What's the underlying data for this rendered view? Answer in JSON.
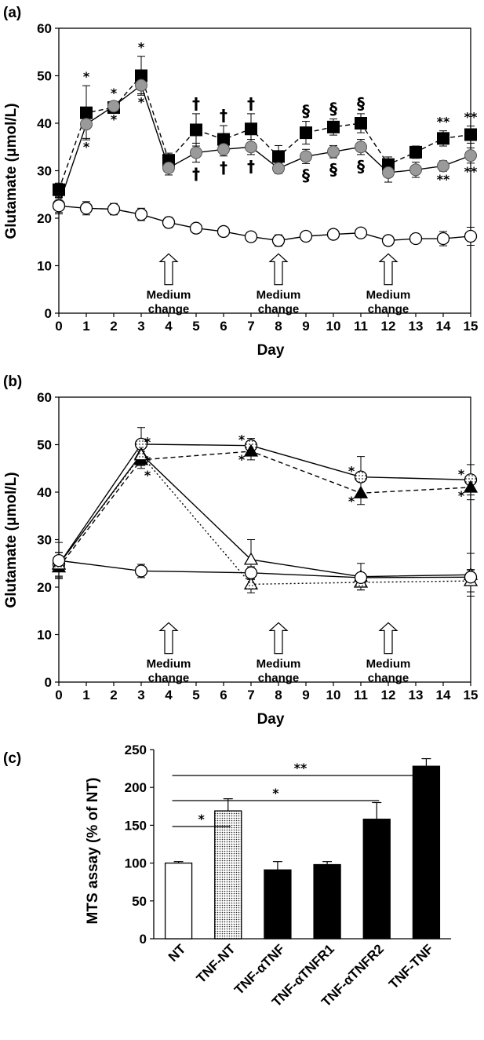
{
  "chart_data": [
    {
      "panel_label": "(a)",
      "type": "line",
      "xlabel": "Day",
      "ylabel": "Glutamate (μmol/L)",
      "xlim": [
        0,
        15
      ],
      "ylim": [
        0,
        60
      ],
      "xticks": [
        "0",
        "1",
        "2",
        "3",
        "4",
        "5",
        "6",
        "7",
        "8",
        "9",
        "10",
        "11",
        "12",
        "13",
        "14",
        "15"
      ],
      "yticks": [
        "0",
        "10",
        "20",
        "30",
        "40",
        "50",
        "60"
      ],
      "grid": false,
      "series": [
        {
          "marker": "filled-square",
          "line": "dashed",
          "x": [
            0,
            1,
            2,
            3,
            4,
            5,
            6,
            7,
            8,
            9,
            10,
            11,
            12,
            13,
            14,
            15
          ],
          "y": [
            26,
            42.2,
            43.3,
            50,
            32.2,
            38.6,
            36.6,
            38.8,
            33,
            38,
            39.2,
            40,
            31.3,
            33.9,
            36.8,
            37.6
          ],
          "err": [
            1.4,
            5.7,
            1.2,
            4.1,
            1.5,
            3.4,
            2.9,
            3.2,
            2.3,
            2.4,
            1.7,
            2,
            1.6,
            1.3,
            1.6,
            1.8
          ]
        },
        {
          "marker": "gray-circle",
          "line": "solid",
          "x": [
            0,
            1,
            2,
            3,
            4,
            5,
            6,
            7,
            8,
            9,
            10,
            11,
            12,
            13,
            14,
            15
          ],
          "y": [
            22.8,
            39.8,
            43.6,
            48,
            30.6,
            33.8,
            34.5,
            35,
            30.5,
            33,
            34,
            35,
            29.6,
            30.2,
            31,
            33.2
          ],
          "err": [
            1.6,
            3,
            1,
            1.8,
            1.5,
            2,
            1.4,
            1.6,
            1.1,
            1.5,
            1.3,
            1.6,
            2,
            1.6,
            1.1,
            1.6
          ]
        },
        {
          "marker": "open-circle",
          "line": "solid",
          "x": [
            0,
            1,
            2,
            3,
            4,
            5,
            6,
            7,
            8,
            9,
            10,
            11,
            12,
            13,
            14,
            15
          ],
          "y": [
            22.6,
            22.1,
            21.9,
            20.8,
            19.1,
            17.9,
            17.2,
            16.1,
            15.3,
            16.2,
            16.6,
            16.9,
            15.3,
            15.7,
            15.7,
            16.2
          ],
          "err": [
            1.7,
            1.4,
            1.2,
            1.3,
            1.1,
            0.6,
            0.6,
            0.6,
            1.2,
            0.9,
            1,
            0.9,
            1,
            0.9,
            1.5,
            1.9
          ]
        }
      ],
      "annotations": [
        {
          "text": "*",
          "x": 1,
          "pos": "above"
        },
        {
          "text": "*",
          "x": 1,
          "pos": "below"
        },
        {
          "text": "*",
          "x": 2,
          "pos": "above"
        },
        {
          "text": "*",
          "x": 2,
          "pos": "below"
        },
        {
          "text": "*",
          "x": 3,
          "pos": "above"
        },
        {
          "text": "*",
          "x": 3,
          "pos": "below"
        },
        {
          "text": "†",
          "x": 5,
          "pos": "above"
        },
        {
          "text": "†",
          "x": 5,
          "pos": "below"
        },
        {
          "text": "†",
          "x": 6,
          "pos": "above"
        },
        {
          "text": "†",
          "x": 6,
          "pos": "below"
        },
        {
          "text": "†",
          "x": 7,
          "pos": "above"
        },
        {
          "text": "†",
          "x": 7,
          "pos": "below"
        },
        {
          "text": "§",
          "x": 9,
          "pos": "above"
        },
        {
          "text": "§",
          "x": 9,
          "pos": "below"
        },
        {
          "text": "§",
          "x": 10,
          "pos": "above"
        },
        {
          "text": "§",
          "x": 10,
          "pos": "below"
        },
        {
          "text": "§",
          "x": 11,
          "pos": "above"
        },
        {
          "text": "§",
          "x": 11,
          "pos": "below"
        },
        {
          "text": "**",
          "x": 14,
          "pos": "above"
        },
        {
          "text": "**",
          "x": 14,
          "pos": "below"
        },
        {
          "text": "**",
          "x": 15,
          "pos": "above"
        },
        {
          "text": "**",
          "x": 15,
          "pos": "below"
        }
      ],
      "medium_change": {
        "label_line1": "Medium",
        "label_line2": "change",
        "days": [
          4,
          8,
          12
        ]
      }
    },
    {
      "panel_label": "(b)",
      "type": "line",
      "xlabel": "Day",
      "ylabel": "Glutamate (μmol/L)",
      "xlim": [
        0,
        15
      ],
      "ylim": [
        0,
        60
      ],
      "xticks": [
        "0",
        "1",
        "2",
        "3",
        "4",
        "5",
        "6",
        "7",
        "8",
        "9",
        "10",
        "11",
        "12",
        "13",
        "14",
        "15"
      ],
      "yticks": [
        "0",
        "10",
        "20",
        "30",
        "40",
        "50",
        "60"
      ],
      "grid": false,
      "series": [
        {
          "marker": "dotted-circle",
          "line": "solid",
          "x": [
            0,
            3,
            7,
            11,
            15
          ],
          "y": [
            24.8,
            50.1,
            49.8,
            43.2,
            42.6
          ],
          "err": [
            2.5,
            3.5,
            1.5,
            4.3,
            3.2
          ]
        },
        {
          "marker": "filled-triangle",
          "line": "dashed",
          "x": [
            0,
            3,
            7,
            11,
            15
          ],
          "y": [
            24.2,
            46.8,
            48.6,
            39.8,
            41
          ],
          "err": [
            2.2,
            1.8,
            1.8,
            2.4,
            2.6
          ]
        },
        {
          "marker": "open-triangle",
          "line": "solid",
          "x": [
            0,
            3,
            7,
            11,
            15
          ],
          "y": [
            24.8,
            48,
            25.8,
            22.2,
            22.6
          ],
          "err": [
            2.5,
            2,
            4.2,
            2.8,
            4.5
          ]
        },
        {
          "marker": "dotted-triangle",
          "line": "dotted",
          "x": [
            0,
            3,
            7,
            11,
            15
          ],
          "y": [
            24.8,
            47.8,
            20.6,
            21,
            21.3
          ],
          "err": [
            2.5,
            2.2,
            1.8,
            1.6,
            2.3
          ]
        },
        {
          "marker": "open-circle",
          "line": "solid",
          "x": [
            0,
            3,
            7,
            11,
            15
          ],
          "y": [
            25.6,
            23.4,
            23,
            22,
            22.1
          ],
          "err": [
            3.8,
            1.4,
            1.3,
            1,
            1.6
          ]
        }
      ],
      "annotations": [
        {
          "text": "*",
          "x": 3,
          "pos": "right-top"
        },
        {
          "text": "*",
          "x": 3,
          "pos": "right-mid"
        },
        {
          "text": "*",
          "x": 3,
          "pos": "right-low"
        },
        {
          "text": "*",
          "x": 7,
          "pos": "left-top"
        },
        {
          "text": "*",
          "x": 7,
          "pos": "left-low"
        },
        {
          "text": "*",
          "x": 11,
          "pos": "left-top"
        },
        {
          "text": "*",
          "x": 11,
          "pos": "left-low"
        },
        {
          "text": "*",
          "x": 15,
          "pos": "left-top"
        },
        {
          "text": "*",
          "x": 15,
          "pos": "left-low"
        }
      ],
      "medium_change": {
        "label_line1": "Medium",
        "label_line2": "change",
        "days": [
          4,
          8,
          12
        ]
      }
    },
    {
      "panel_label": "(c)",
      "type": "bar",
      "ylabel": "MTS assay (% of NT)",
      "ylim": [
        0,
        250
      ],
      "yticks": [
        "0",
        "50",
        "100",
        "150",
        "200",
        "250"
      ],
      "categories": [
        "NT",
        "TNF-NT",
        "TNF-αTNF",
        "TNF-αTNFR1",
        "TNF-αTNFR2",
        "TNF-TNF"
      ],
      "values": [
        100,
        169,
        91,
        98,
        158,
        228
      ],
      "err": [
        2,
        16,
        11,
        4,
        22,
        10
      ],
      "fills": [
        "white",
        "dotted",
        "black",
        "black",
        "black",
        "black"
      ],
      "significance": [
        {
          "from": "NT",
          "to": "TNF-NT",
          "text": "*"
        },
        {
          "from": "NT",
          "to": "TNF-αTNFR2",
          "text": "*"
        },
        {
          "from": "NT",
          "to": "TNF-TNF",
          "text": "**"
        }
      ]
    }
  ]
}
